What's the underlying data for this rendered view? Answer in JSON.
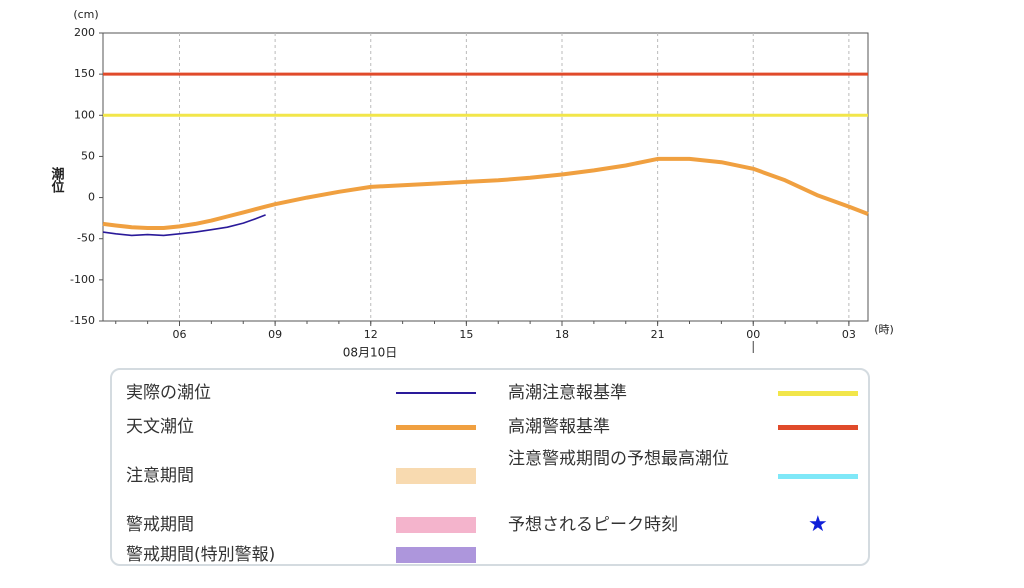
{
  "chart_data": {
    "type": "line",
    "y_unit": "(cm)",
    "x_unit": "(時)",
    "ylabel": "潮位",
    "date_label": "08月10日",
    "x": [
      3.6,
      4,
      4.5,
      5,
      5.5,
      6,
      6.5,
      7,
      7.5,
      8,
      8.3,
      8.7,
      9,
      10,
      11,
      12,
      13,
      14,
      15,
      16,
      17,
      18,
      19,
      20,
      21,
      22,
      23,
      24,
      25,
      26,
      27,
      27.6
    ],
    "xlim": [
      3.6,
      27.6
    ],
    "xticks": [
      {
        "value": 6,
        "label": "06"
      },
      {
        "value": 9,
        "label": "09"
      },
      12,
      15,
      18,
      21,
      {
        "value": 24,
        "label": "00"
      },
      {
        "value": 27,
        "label": "03"
      }
    ],
    "day_boundary": 24,
    "ylim": [
      -150,
      200
    ],
    "yticks": [
      -150,
      -100,
      -50,
      0,
      50,
      100,
      150,
      200
    ],
    "grid": true,
    "series": [
      {
        "name": "実際の潮位",
        "color": "#2a1a9a",
        "values": [
          -42,
          -44,
          -46,
          -45,
          -46,
          -44,
          -42,
          -39,
          -36,
          -31,
          -27,
          -21,
          null,
          null,
          null,
          null,
          null,
          null,
          null,
          null,
          null,
          null,
          null,
          null,
          null,
          null,
          null,
          null,
          null,
          null,
          null,
          null
        ]
      },
      {
        "name": "天文潮位",
        "color": "#f0a040",
        "values": [
          -32,
          -34,
          -36,
          -37,
          -37,
          -35,
          -32,
          -28,
          -23,
          -18,
          -15,
          -11,
          -8,
          0,
          7,
          13,
          15,
          17,
          19,
          21,
          24,
          28,
          33,
          39,
          47,
          47,
          43,
          35,
          21,
          3,
          -11,
          -20
        ]
      }
    ],
    "reference_lines": [
      {
        "name": "高潮注意報基準",
        "color": "#f2e64a",
        "value": 100
      },
      {
        "name": "高潮警報基準",
        "color": "#e04a2a",
        "value": 150
      }
    ],
    "legend_extra": [
      {
        "name": "注意期間",
        "color": "#f8dab0"
      },
      {
        "name": "警戒期間",
        "color": "#f4b4cc"
      },
      {
        "name": "警戒期間(特別警報)",
        "color": "#ad96dc"
      },
      {
        "name": "注意警戒期間の予想最高潮位",
        "color": "#7fe8f8"
      },
      {
        "name": "予想されるピーク時刻",
        "color": "#1020d8",
        "symbol": "★"
      }
    ]
  }
}
